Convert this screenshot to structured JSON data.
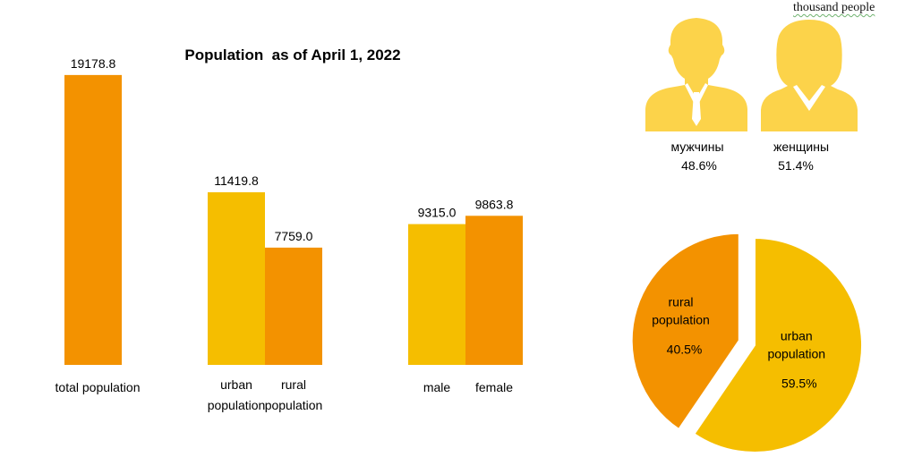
{
  "unit_label": "thousand people",
  "colors": {
    "orange": "#F39200",
    "yellow": "#F5BE00",
    "silhouette": "#FCD34A"
  },
  "gender_panel": {
    "male_icon": "man-silhouette-icon",
    "female_icon": "woman-silhouette-icon",
    "male_label": "мужчины",
    "male_pct": "48.6%",
    "female_label": "женщины",
    "female_pct": "51.4%"
  },
  "chart_data": [
    {
      "type": "bar",
      "title": "Population  as of April 1, 2022",
      "ylim": [
        0,
        20000
      ],
      "grid": false,
      "bars": [
        {
          "label": [
            "total population"
          ],
          "value": 19178.8,
          "value_text": "19178.8",
          "color": "orange",
          "group": 0
        },
        {
          "label": [
            "urban",
            "population"
          ],
          "value": 11419.8,
          "value_text": "11419.8",
          "color": "yellow",
          "group": 1
        },
        {
          "label": [
            "rural",
            "population"
          ],
          "value": 7759.0,
          "value_text": "7759.0",
          "color": "orange",
          "group": 1
        },
        {
          "label": [
            "male"
          ],
          "value": 9315.0,
          "value_text": "9315.0",
          "color": "yellow",
          "group": 2
        },
        {
          "label": [
            "female"
          ],
          "value": 9863.8,
          "value_text": "9863.8",
          "color": "orange",
          "group": 2
        }
      ]
    },
    {
      "type": "pie",
      "slices": [
        {
          "label": [
            "urban",
            "population"
          ],
          "value": 59.5,
          "pct_text": "59.5%",
          "color": "yellow"
        },
        {
          "label": [
            "rural",
            "population"
          ],
          "value": 40.5,
          "pct_text": "40.5%",
          "color": "orange",
          "exploded": true
        }
      ]
    }
  ]
}
